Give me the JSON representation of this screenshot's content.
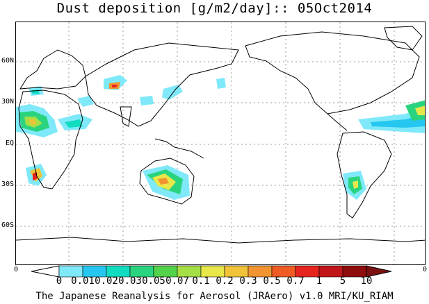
{
  "title": "Dust deposition [g/m2/day]:: 05Oct2014",
  "lat_labels": [
    "60N",
    "30N",
    "EQ",
    "30S",
    "60S"
  ],
  "edge_labels": {
    "left": "0",
    "right": "0"
  },
  "colorbar": {
    "labels": [
      "0",
      "0.01",
      "0.02",
      "0.03",
      "0.05",
      "0.07",
      "0.1",
      "0.2",
      "0.3",
      "0.5",
      "0.7",
      "1",
      "5",
      "10"
    ],
    "colors": [
      "#ffffff",
      "#7fe9f9",
      "#25c7f0",
      "#12dcc0",
      "#2ad47f",
      "#53d34a",
      "#a6de45",
      "#e9e84a",
      "#f0c33a",
      "#f29530",
      "#ef5b23",
      "#e5251d",
      "#c0161a",
      "#8f0d0d",
      "#7a1010"
    ]
  },
  "footer": "The Japanese Reanalysis for Aerosol (JRAero) v1.0 MRI/KU_RIAM"
}
